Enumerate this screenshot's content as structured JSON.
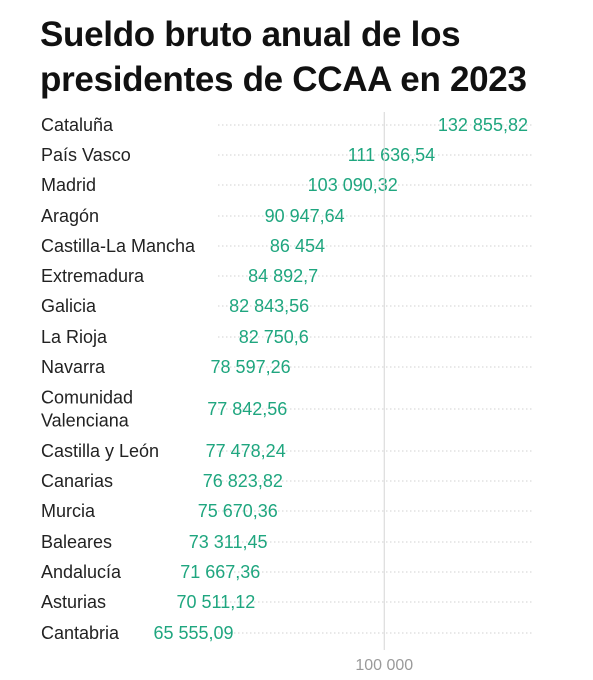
{
  "chart_data": {
    "type": "dot",
    "title": "Sueldo bruto anual de los presidentes de CCAA en 2023",
    "xlabel": "",
    "ylabel": "",
    "xlim": [
      62000,
      134000
    ],
    "x_ticks": [
      {
        "value": 100000,
        "label": "100 000"
      }
    ],
    "grid": true,
    "value_color": "#1fa67f",
    "categories": [
      "Cataluña",
      "País Vasco",
      "Madrid",
      "Aragón",
      "Castilla-La Mancha",
      "Extremadura",
      "Galicia",
      "La Rioja",
      "Navarra",
      "Comunidad Valenciana",
      "Castilla y León",
      "Canarias",
      "Murcia",
      "Baleares",
      "Andalucía",
      "Asturias",
      "Cantabria"
    ],
    "category_lines": [
      [
        "Cataluña"
      ],
      [
        "País Vasco"
      ],
      [
        "Madrid"
      ],
      [
        "Aragón"
      ],
      [
        "Castilla-La Mancha"
      ],
      [
        "Extremadura"
      ],
      [
        "Galicia"
      ],
      [
        "La Rioja"
      ],
      [
        "Navarra"
      ],
      [
        "Comunidad",
        "Valenciana"
      ],
      [
        "Castilla y León"
      ],
      [
        "Canarias"
      ],
      [
        "Murcia"
      ],
      [
        "Baleares"
      ],
      [
        "Andalucía"
      ],
      [
        "Asturias"
      ],
      [
        "Cantabria"
      ]
    ],
    "values": [
      132855.82,
      111636.54,
      103090.32,
      90947.64,
      86454,
      84892.7,
      82843.56,
      82750.6,
      78597.26,
      77842.56,
      77478.24,
      76823.82,
      75670.36,
      73311.45,
      71667.36,
      70511.12,
      65555.09
    ],
    "value_labels": [
      "132 855,82",
      "111 636,54",
      "103 090,32",
      "90 947,64",
      "86 454",
      "84 892,7",
      "82 843,56",
      "82 750,6",
      "78 597,26",
      "77 842,56",
      "77 478,24",
      "76 823,82",
      "75 670,36",
      "73 311,45",
      "71 667,36",
      "70 511,12",
      "65 555,09"
    ]
  }
}
